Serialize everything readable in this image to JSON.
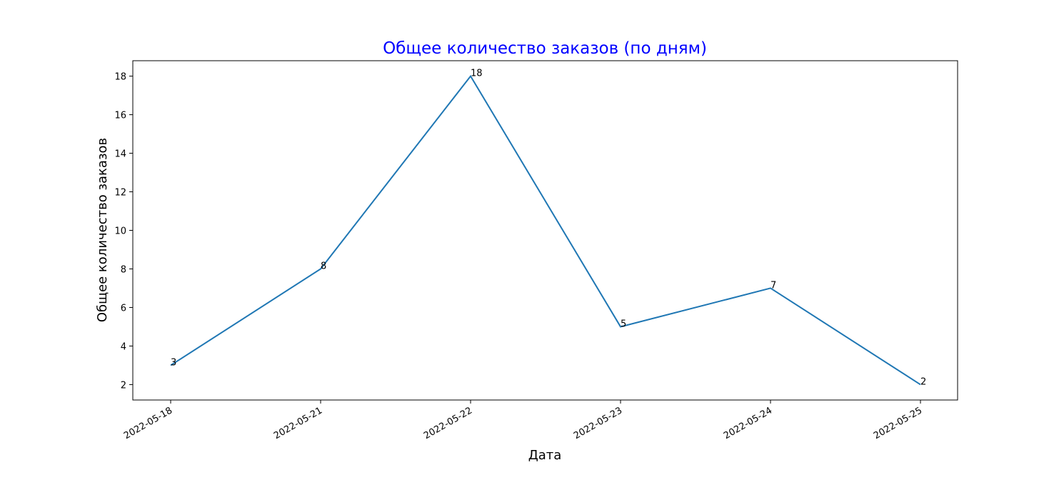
{
  "chart_data": {
    "type": "line",
    "title": "Общее количество заказов (по дням)",
    "xlabel": "Дата",
    "ylabel": "Общее количество заказов",
    "categories": [
      "2022-05-18",
      "2022-05-21",
      "2022-05-22",
      "2022-05-23",
      "2022-05-24",
      "2022-05-25"
    ],
    "values": [
      3,
      8,
      18,
      5,
      7,
      2
    ],
    "yticks": [
      "2",
      "4",
      "6",
      "8",
      "10",
      "12",
      "14",
      "16",
      "18"
    ],
    "ylim": [
      1.2,
      18.8
    ],
    "grid": false,
    "colors": {
      "line": "#1f77b4",
      "title": "#0000ff"
    }
  }
}
